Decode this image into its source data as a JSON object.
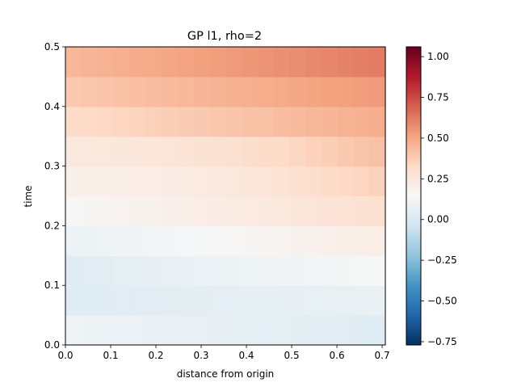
{
  "chart_data": {
    "type": "heatmap",
    "title": "GP l1, rho=2",
    "xlabel": "distance from origin",
    "ylabel": "time",
    "xlim": [
      0,
      0.707
    ],
    "ylim": [
      0,
      0.5
    ],
    "x_ticks": [
      "0.0",
      "0.1",
      "0.2",
      "0.3",
      "0.4",
      "0.5",
      "0.6",
      "0.7"
    ],
    "y_ticks": [
      "0.0",
      "0.1",
      "0.2",
      "0.3",
      "0.4",
      "0.5"
    ],
    "x_centers": [
      0.0177,
      0.053,
      0.0884,
      0.1237,
      0.1591,
      0.1944,
      0.2298,
      0.2651,
      0.3005,
      0.3358,
      0.3712,
      0.4066,
      0.4419,
      0.4773,
      0.5126,
      0.548,
      0.5833,
      0.6187,
      0.654,
      0.6894
    ],
    "y_centers": [
      0.025,
      0.075,
      0.125,
      0.175,
      0.225,
      0.275,
      0.325,
      0.375,
      0.425,
      0.475
    ],
    "z_description": "rows from bottom (time 0.025) to top (time 0.475), columns from left to right",
    "z_first_last": [
      [
        0.1,
        0.03
      ],
      [
        0.03,
        0.08
      ],
      [
        0.03,
        0.14
      ],
      [
        0.09,
        0.21
      ],
      [
        0.15,
        0.29
      ],
      [
        0.2,
        0.36
      ],
      [
        0.24,
        0.42
      ],
      [
        0.32,
        0.48
      ],
      [
        0.39,
        0.54
      ],
      [
        0.45,
        0.62
      ]
    ],
    "z_dip": [
      0.0,
      0.0,
      0.01,
      0.0,
      0.0,
      -0.04,
      -0.04,
      0.0,
      0.0,
      0.0
    ],
    "colorbar": {
      "colormap": "RdBu_r",
      "vmin": -0.77,
      "vmax": 1.06,
      "ticks": [
        "−0.75",
        "−0.50",
        "−0.25",
        "0.00",
        "0.25",
        "0.50",
        "0.75",
        "1.00"
      ],
      "tick_values": [
        -0.75,
        -0.5,
        -0.25,
        0.0,
        0.25,
        0.5,
        0.75,
        1.0
      ]
    }
  }
}
